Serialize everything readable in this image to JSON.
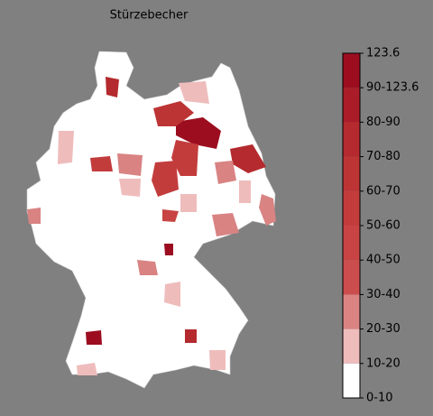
{
  "title": "Stürzebecher",
  "colorbar": {
    "labels": [
      "0-10",
      "10-20",
      "20-30",
      "30-40",
      "40-50",
      "50-60",
      "60-70",
      "70-80",
      "80-90",
      "90-123.6",
      "123.6"
    ],
    "colors": [
      "#ffffff",
      "#efbcbc",
      "#d98383",
      "#cc4d4d",
      "#c84444",
      "#c33c3c",
      "#bd3434",
      "#b42a2e",
      "#a91c28",
      "#9c0d20"
    ]
  }
}
